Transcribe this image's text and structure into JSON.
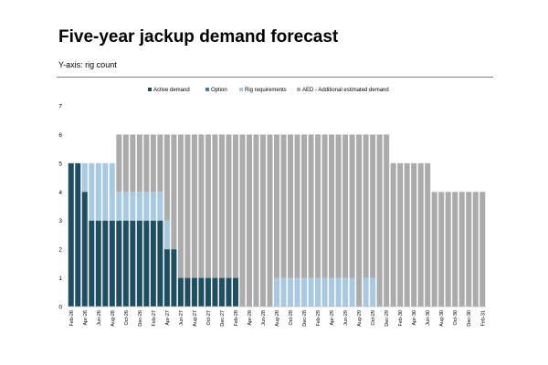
{
  "page": {
    "title": "Five-year jackup demand forecast",
    "subtitle": "Y-axis: rig count"
  },
  "chart_data": {
    "type": "bar",
    "stacked": true,
    "ylim": [
      0,
      7
    ],
    "yticks": [
      0,
      1,
      2,
      3,
      4,
      5,
      6,
      7
    ],
    "legend_position": "top",
    "grid": false,
    "categories": [
      "Feb-26",
      "Mar-26",
      "Apr-26",
      "May-26",
      "Jun-26",
      "Jul-26",
      "Aug-26",
      "Sep-26",
      "Oct-26",
      "Nov-26",
      "Dec-26",
      "Jan-27",
      "Feb-27",
      "Mar-27",
      "Apr-27",
      "May-27",
      "Jun-27",
      "Jul-27",
      "Aug-27",
      "Sep-27",
      "Oct-27",
      "Nov-27",
      "Dec-27",
      "Jan-28",
      "Feb-28",
      "Mar-28",
      "Apr-28",
      "May-28",
      "Jun-28",
      "Jul-28",
      "Aug-28",
      "Sep-28",
      "Oct-28",
      "Nov-28",
      "Dec-28",
      "Jan-29",
      "Feb-29",
      "Mar-29",
      "Apr-29",
      "May-29",
      "Jun-29",
      "Jul-29",
      "Aug-29",
      "Sep-29",
      "Oct-29",
      "Nov-29",
      "Dec-29",
      "Jan-30",
      "Feb-30",
      "Mar-30",
      "Apr-30",
      "May-30",
      "Jun-30",
      "Jul-30",
      "Aug-30",
      "Sep-30",
      "Oct-30",
      "Nov-30",
      "Dec-30",
      "Jan-31",
      "Feb-31"
    ],
    "xtick_labels": [
      "Feb-26",
      "Apr-26",
      "Jun-26",
      "Aug-26",
      "Oct-26",
      "Dec-26",
      "Feb-27",
      "Apr-27",
      "Jun-27",
      "Aug-27",
      "Oct-27",
      "Dec-27",
      "Feb-28",
      "Apr-28",
      "Jun-28",
      "Aug-28",
      "Oct-28",
      "Dec-28",
      "Feb-29",
      "Apr-29",
      "Jun-29",
      "Aug-29",
      "Oct-29",
      "Dec-29",
      "Feb-30",
      "Apr-30",
      "Jun-30",
      "Aug-30",
      "Oct-30",
      "Dec-30",
      "Feb-31"
    ],
    "series": [
      {
        "name": "Active demand",
        "color": "#1f4e63",
        "values": [
          5,
          5,
          4,
          3,
          3,
          3,
          3,
          3,
          3,
          3,
          3,
          3,
          3,
          3,
          2,
          2,
          1,
          1,
          1,
          1,
          1,
          1,
          1,
          1,
          1,
          0,
          0,
          0,
          0,
          0,
          0,
          0,
          0,
          0,
          0,
          0,
          0,
          0,
          0,
          0,
          0,
          0,
          0,
          0,
          0,
          0,
          0,
          0,
          0,
          0,
          0,
          0,
          0,
          0,
          0,
          0,
          0,
          0,
          0,
          0,
          0
        ]
      },
      {
        "name": "Option",
        "color": "#3b7fa8",
        "values": [
          0,
          0,
          0,
          0,
          0,
          0,
          0,
          0,
          0,
          0,
          0,
          0,
          0,
          0,
          0,
          0,
          0,
          0,
          0,
          0,
          0,
          0,
          0,
          0,
          0,
          0,
          0,
          0,
          0,
          0,
          0,
          0,
          0,
          0,
          0,
          0,
          0,
          0,
          0,
          0,
          0,
          0,
          0,
          0,
          0,
          0,
          0,
          0,
          0,
          0,
          0,
          0,
          0,
          0,
          0,
          0,
          0,
          0,
          0,
          0,
          0
        ]
      },
      {
        "name": "Rig requirements",
        "color": "#a9c9e3",
        "values": [
          0,
          0,
          1,
          2,
          2,
          2,
          2,
          1,
          1,
          1,
          1,
          1,
          1,
          1,
          1,
          0,
          0,
          0,
          0,
          0,
          0,
          0,
          0,
          0,
          0,
          0,
          0,
          0,
          0,
          0,
          1,
          1,
          1,
          1,
          1,
          1,
          1,
          1,
          1,
          1,
          1,
          1,
          0,
          1,
          1,
          0,
          0,
          0,
          0,
          0,
          0,
          0,
          0,
          0,
          0,
          0,
          0,
          0,
          0,
          0,
          0
        ]
      },
      {
        "name": "AED - Additional estimated demand",
        "color": "#ababab",
        "values": [
          0,
          0,
          0,
          0,
          0,
          0,
          0,
          2,
          2,
          2,
          2,
          2,
          2,
          2,
          3,
          4,
          5,
          5,
          5,
          5,
          5,
          5,
          5,
          5,
          5,
          6,
          6,
          6,
          6,
          6,
          5,
          5,
          5,
          5,
          5,
          5,
          5,
          5,
          5,
          5,
          5,
          5,
          6,
          5,
          5,
          6,
          6,
          5,
          5,
          5,
          5,
          5,
          5,
          4,
          4,
          4,
          4,
          4,
          4,
          4,
          4
        ]
      }
    ]
  }
}
